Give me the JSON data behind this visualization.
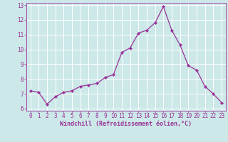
{
  "x": [
    0,
    1,
    2,
    3,
    4,
    5,
    6,
    7,
    8,
    9,
    10,
    11,
    12,
    13,
    14,
    15,
    16,
    17,
    18,
    19,
    20,
    21,
    22,
    23
  ],
  "y": [
    7.2,
    7.1,
    6.3,
    6.8,
    7.1,
    7.2,
    7.5,
    7.6,
    7.7,
    8.1,
    8.3,
    9.8,
    10.1,
    11.1,
    11.3,
    11.8,
    12.9,
    11.3,
    10.3,
    8.9,
    8.6,
    7.5,
    7.0,
    6.4
  ],
  "line_color": "#993399",
  "marker_color": "#993399",
  "bg_color": "#cce8e8",
  "grid_color": "#ffffff",
  "xlabel": "Windchill (Refroidissement éolien,°C)",
  "xlabel_color": "#993399",
  "tick_color": "#993399",
  "ylim": [
    6,
    13
  ],
  "xlim_min": -0.5,
  "xlim_max": 23.5,
  "yticks": [
    6,
    7,
    8,
    9,
    10,
    11,
    12,
    13
  ],
  "xticks": [
    0,
    1,
    2,
    3,
    4,
    5,
    6,
    7,
    8,
    9,
    10,
    11,
    12,
    13,
    14,
    15,
    16,
    17,
    18,
    19,
    20,
    21,
    22,
    23
  ],
  "tick_fontsize": 5.5,
  "xlabel_fontsize": 6.0
}
